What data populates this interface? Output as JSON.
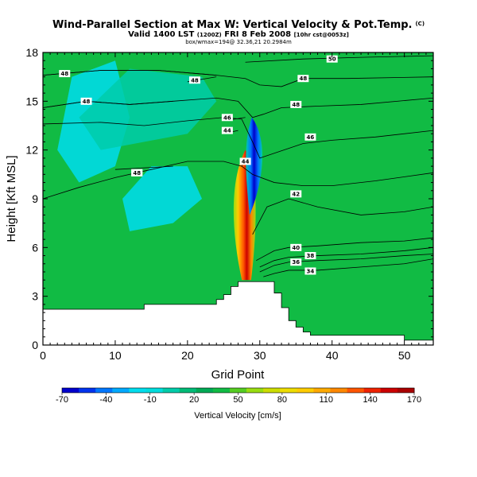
{
  "chart_data": {
    "type": "heatmap",
    "title": "Wind-Parallel Section at Max W: Vertical Velocity & Pot.Temp.",
    "title_mark": "(C)",
    "subtitle": "Valid 1400 LST",
    "subtitle_small": "(1200Z)",
    "subtitle_rest": "FRI 8 Feb 2008",
    "subtitle_small2": "[10hr cst@0053z]",
    "subtitle2": "box/wmax=194@ 32.36,21 20.2984m",
    "xlabel": "Grid Point",
    "ylabel": "Height [Kft MSL]",
    "xlim": [
      0,
      54
    ],
    "ylim": [
      0,
      18
    ],
    "xticks": [
      0,
      10,
      20,
      30,
      40,
      50
    ],
    "yticks": [
      0,
      3,
      6,
      9,
      12,
      15,
      18
    ],
    "colorbar": {
      "title": "Vertical Velocity [cm/s]",
      "labels": [
        "-70",
        "-40",
        "-10",
        "20",
        "50",
        "80",
        "110",
        "140",
        "170"
      ],
      "colors": [
        "#0000cc",
        "#0033ee",
        "#0077ff",
        "#00aaff",
        "#00ddee",
        "#00dddd",
        "#00ccaa",
        "#00bb77",
        "#00aa55",
        "#11bb44",
        "#55cc22",
        "#99dd11",
        "#ccdd00",
        "#eedd00",
        "#ffcc00",
        "#ffaa00",
        "#ff8800",
        "#ff5500",
        "#ee2200",
        "#cc0000",
        "#aa0000"
      ]
    },
    "background_color": "#11bb44",
    "terrain_profile": [
      [
        0,
        2.2
      ],
      [
        14,
        2.2
      ],
      [
        14,
        2.5
      ],
      [
        24,
        2.5
      ],
      [
        24,
        2.8
      ],
      [
        25,
        2.8
      ],
      [
        25,
        3.1
      ],
      [
        26,
        3.1
      ],
      [
        26,
        3.6
      ],
      [
        27,
        3.6
      ],
      [
        27,
        3.9
      ],
      [
        32,
        3.9
      ],
      [
        32,
        3.2
      ],
      [
        33,
        3.2
      ],
      [
        33,
        2.3
      ],
      [
        34,
        2.3
      ],
      [
        34,
        1.5
      ],
      [
        35,
        1.5
      ],
      [
        35,
        1.1
      ],
      [
        36,
        1.1
      ],
      [
        36,
        0.8
      ],
      [
        37,
        0.8
      ],
      [
        37,
        0.6
      ],
      [
        50,
        0.6
      ],
      [
        50,
        0.3
      ],
      [
        54,
        0.3
      ]
    ],
    "cyan_zones": [
      {
        "x": [
          2,
          4,
          10,
          12,
          10,
          5
        ],
        "y": [
          12,
          16.5,
          17.5,
          14,
          11,
          10
        ],
        "color": "#00ddee"
      },
      {
        "x": [
          12,
          18,
          22,
          20,
          15,
          11
        ],
        "y": [
          7,
          7.5,
          9,
          11,
          11,
          9
        ],
        "color": "#00ddee"
      },
      {
        "x": [
          8,
          20,
          24,
          22,
          12,
          5
        ],
        "y": [
          12,
          13,
          15,
          16.5,
          17,
          14
        ],
        "color": "#00ccaa"
      }
    ],
    "strong_updraft": {
      "x_center": 28,
      "y_range": [
        4,
        12
      ],
      "peak": 194
    },
    "strong_downdraft": {
      "x_center": 29.5,
      "y_range": [
        8,
        14
      ],
      "peak": -70
    },
    "contours": [
      {
        "label": "34",
        "points": [
          [
            30.5,
            4.2
          ],
          [
            32,
            4.4
          ],
          [
            34,
            4.6
          ],
          [
            38,
            4.6
          ],
          [
            44,
            4.8
          ],
          [
            50,
            5.0
          ],
          [
            54,
            5.3
          ]
        ],
        "label_at": [
          37,
          4.55
        ]
      },
      {
        "label": "36",
        "points": [
          [
            30,
            4.5
          ],
          [
            32,
            4.9
          ],
          [
            34,
            5.1
          ],
          [
            38,
            5.2
          ],
          [
            44,
            5.3
          ],
          [
            50,
            5.5
          ],
          [
            54,
            5.6
          ]
        ],
        "label_at": [
          35,
          5.1
        ]
      },
      {
        "label": "38",
        "points": [
          [
            30,
            4.8
          ],
          [
            32,
            5.2
          ],
          [
            34,
            5.4
          ],
          [
            38,
            5.5
          ],
          [
            44,
            5.6
          ],
          [
            50,
            5.8
          ],
          [
            54,
            6.0
          ]
        ],
        "label_at": [
          37,
          5.5
        ]
      },
      {
        "label": "40",
        "points": [
          [
            29.5,
            5.2
          ],
          [
            32,
            5.8
          ],
          [
            34,
            6.0
          ],
          [
            38,
            6.1
          ],
          [
            44,
            6.3
          ],
          [
            50,
            6.4
          ],
          [
            54,
            6.6
          ]
        ],
        "label_at": [
          35,
          6.0
        ]
      },
      {
        "label": "42",
        "points": [
          [
            29,
            6.8
          ],
          [
            31,
            8.5
          ],
          [
            34,
            9.0
          ],
          [
            38,
            8.5
          ],
          [
            44,
            8.0
          ],
          [
            50,
            8.2
          ],
          [
            54,
            8.5
          ]
        ],
        "label_at": [
          35,
          9.3
        ]
      },
      {
        "label": "44",
        "points": [
          [
            0,
            9.0
          ],
          [
            5,
            9.7
          ],
          [
            10,
            10.3
          ],
          [
            15,
            10.8
          ],
          [
            20,
            11.3
          ],
          [
            25,
            11.3
          ],
          [
            27.5,
            11.0
          ],
          [
            29,
            10.5
          ],
          [
            32,
            10.0
          ],
          [
            36,
            9.8
          ],
          [
            40,
            9.8
          ],
          [
            46,
            10.1
          ],
          [
            54,
            10.6
          ]
        ],
        "label_at": [
          13,
          10.6
        ]
      },
      {
        "label": "46",
        "points": [
          [
            0,
            13.6
          ],
          [
            8,
            13.7
          ],
          [
            14,
            13.5
          ],
          [
            20,
            13.8
          ],
          [
            25,
            14.0
          ],
          [
            27.5,
            13.9
          ],
          [
            29,
            12.5
          ],
          [
            30,
            11.5
          ],
          [
            32,
            11.8
          ],
          [
            36,
            12.4
          ],
          [
            40,
            12.6
          ],
          [
            46,
            12.8
          ],
          [
            54,
            13.2
          ]
        ],
        "label_at": [
          37,
          12.8
        ]
      },
      {
        "label": "48",
        "points": [
          [
            0,
            14.6
          ],
          [
            6,
            15.0
          ],
          [
            12,
            14.8
          ],
          [
            18,
            15.0
          ],
          [
            24,
            15.2
          ],
          [
            27,
            15.0
          ],
          [
            29,
            14.0
          ],
          [
            30.5,
            14.2
          ],
          [
            33,
            14.6
          ],
          [
            38,
            14.7
          ],
          [
            44,
            14.8
          ],
          [
            54,
            15.2
          ]
        ],
        "label_at": [
          35,
          14.8
        ]
      },
      {
        "label": "48",
        "points": [
          [
            0,
            16.6
          ],
          [
            8,
            16.9
          ],
          [
            16,
            16.9
          ],
          [
            24,
            16.6
          ],
          [
            28,
            16.4
          ],
          [
            30,
            16.0
          ],
          [
            33,
            15.9
          ],
          [
            36,
            16.4
          ],
          [
            42,
            16.4
          ],
          [
            54,
            16.5
          ]
        ],
        "label_at": [
          36,
          16.4
        ]
      },
      {
        "label": "48",
        "points": [
          [
            0,
            14.6
          ],
          [
            6,
            15.0
          ],
          [
            12,
            14.8
          ],
          [
            18,
            15.0
          ]
        ],
        "label_at": [
          6,
          15.0
        ]
      },
      {
        "label": "48",
        "points": [
          [
            0,
            16.6
          ],
          [
            8,
            16.9
          ],
          [
            16,
            16.9
          ],
          [
            24,
            16.6
          ]
        ],
        "label_at": [
          3,
          16.7
        ]
      },
      {
        "label": "50",
        "points": [
          [
            28,
            17.4
          ],
          [
            36,
            17.6
          ],
          [
            44,
            17.7
          ],
          [
            54,
            17.8
          ]
        ],
        "label_at": [
          40,
          17.6
        ]
      },
      {
        "label": "48",
        "points": [
          [
            20,
            16.2
          ],
          [
            24,
            16.5
          ]
        ],
        "label_at": [
          21,
          16.3
        ]
      },
      {
        "label": "44",
        "points": [
          [
            27.5,
            11.0
          ],
          [
            28,
            11.5
          ]
        ],
        "label_at": [
          28,
          11.3
        ]
      },
      {
        "label": "48",
        "points": [
          [
            10,
            10.8
          ],
          [
            18,
            11.0
          ]
        ],
        "label_at": [
          13,
          10.6
        ]
      },
      {
        "label": "46",
        "points": [
          [
            25,
            13.8
          ],
          [
            28,
            14.0
          ]
        ],
        "label_at": [
          25.5,
          14.0
        ]
      },
      {
        "label": "44",
        "points": [
          [
            25,
            13.0
          ],
          [
            27,
            13.2
          ]
        ],
        "label_at": [
          25.5,
          13.2
        ]
      }
    ]
  }
}
